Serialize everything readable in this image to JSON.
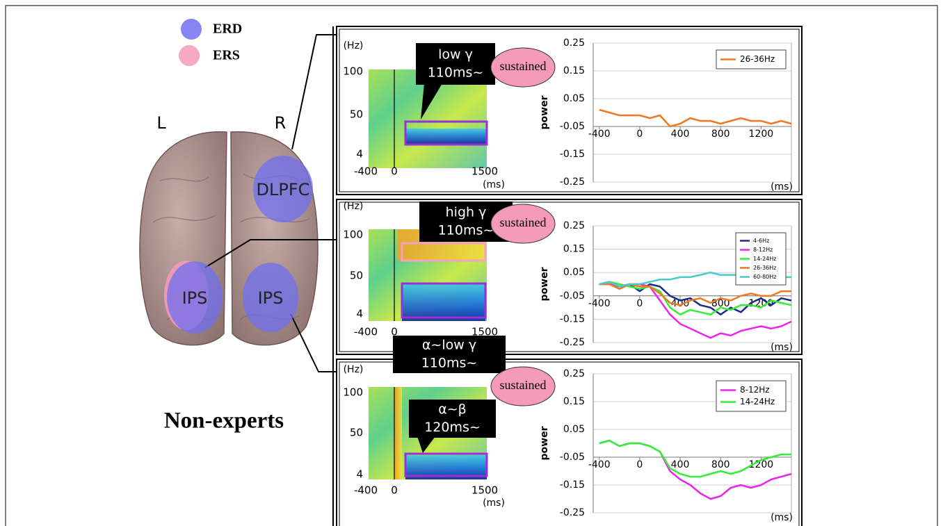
{
  "figure": {
    "legend": [
      {
        "label": "ERD",
        "color": "#6f6ff0"
      },
      {
        "label": "ERS",
        "color": "#f59ab8"
      }
    ],
    "hemispheres": [
      "L",
      "R"
    ],
    "regions": [
      "DLPFC",
      "IPS",
      "IPS"
    ],
    "group": "Non-experts",
    "panels": [
      {
        "spectrogram": {
          "unit_y": "(Hz)",
          "yticks": [
            "100",
            "50",
            "4"
          ],
          "xticks": [
            "-400",
            "0",
            "1500"
          ],
          "unit_x": "(ms)"
        },
        "callouts": [
          {
            "lines": [
              "low γ",
              "110ms~"
            ]
          }
        ],
        "badge": "sustained"
      },
      {
        "spectrogram": {
          "unit_y": "(Hz)",
          "yticks": [
            "100",
            "50",
            "4"
          ],
          "xticks": [
            "-400",
            "0",
            "1500"
          ]
        },
        "callouts": [
          {
            "lines": [
              "high γ",
              "110ms~"
            ]
          }
        ],
        "badge": "sustained"
      },
      {
        "spectrogram": {
          "unit_y": "(Hz)",
          "yticks": [
            "100",
            "50",
            "4"
          ],
          "xticks": [
            "-400",
            "0",
            "1500"
          ],
          "unit_x": "(ms)"
        },
        "callouts": [
          {
            "lines": [
              "α~low γ",
              "110ms~"
            ]
          },
          {
            "lines": [
              "α~β",
              "120ms~"
            ]
          }
        ],
        "badge": "sustained"
      }
    ]
  },
  "chart_data": [
    {
      "type": "line",
      "ylabel": "power",
      "xlabel": "(ms)",
      "legend": "upper right",
      "grid": true,
      "xaxis_crossing": -0.05,
      "xlim": [
        -460,
        1500
      ],
      "ylim": [
        -0.25,
        0.25
      ],
      "xticks": [
        -400,
        0,
        400,
        800,
        1200
      ],
      "yticks": [
        0.25,
        0.15,
        0.05,
        -0.05,
        -0.15,
        -0.25
      ],
      "x": [
        -400,
        -300,
        -200,
        -100,
        0,
        100,
        200,
        300,
        400,
        500,
        600,
        700,
        800,
        900,
        1000,
        1100,
        1200,
        1300,
        1400,
        1500
      ],
      "series": [
        {
          "name": "26-36Hz",
          "color": "#f07820",
          "values": [
            0.01,
            0.0,
            -0.01,
            -0.01,
            -0.01,
            -0.02,
            -0.01,
            -0.05,
            -0.04,
            -0.02,
            -0.03,
            -0.03,
            -0.04,
            -0.03,
            -0.02,
            -0.03,
            -0.03,
            -0.04,
            -0.03,
            -0.04
          ]
        }
      ]
    },
    {
      "type": "line",
      "ylabel": "power",
      "xlabel": "(ms)",
      "legend": "upper right",
      "grid": true,
      "xaxis_crossing": -0.05,
      "xlim": [
        -460,
        1500
      ],
      "ylim": [
        -0.25,
        0.25
      ],
      "xticks": [
        -400,
        0,
        400,
        800,
        1200
      ],
      "yticks": [
        0.25,
        0.15,
        0.05,
        -0.05,
        -0.15,
        -0.25
      ],
      "x": [
        -400,
        -300,
        -200,
        -100,
        0,
        100,
        200,
        300,
        400,
        500,
        600,
        700,
        800,
        900,
        1000,
        1100,
        1200,
        1300,
        1400,
        1500
      ],
      "series": [
        {
          "name": "4-6Hz",
          "color": "#1a2a8c",
          "values": [
            0.0,
            0.01,
            -0.01,
            0.0,
            -0.03,
            0.0,
            -0.01,
            -0.05,
            -0.07,
            -0.06,
            -0.09,
            -0.1,
            -0.13,
            -0.1,
            -0.12,
            -0.08,
            -0.06,
            -0.09,
            -0.06,
            -0.07
          ]
        },
        {
          "name": "8-12Hz",
          "color": "#ee22ee",
          "values": [
            0.0,
            0.0,
            -0.01,
            0.0,
            0.0,
            -0.01,
            -0.07,
            -0.13,
            -0.17,
            -0.19,
            -0.21,
            -0.23,
            -0.21,
            -0.22,
            -0.2,
            -0.19,
            -0.18,
            -0.19,
            -0.18,
            -0.16
          ]
        },
        {
          "name": "14-24Hz",
          "color": "#33ee33",
          "values": [
            0.0,
            0.01,
            0.0,
            -0.01,
            -0.02,
            -0.01,
            -0.03,
            -0.1,
            -0.13,
            -0.11,
            -0.12,
            -0.13,
            -0.1,
            -0.11,
            -0.09,
            -0.09,
            -0.1,
            -0.07,
            -0.08,
            -0.09
          ]
        },
        {
          "name": "26-36Hz",
          "color": "#f07820",
          "values": [
            0.0,
            0.0,
            -0.02,
            0.0,
            -0.01,
            -0.01,
            -0.04,
            -0.08,
            -0.09,
            -0.07,
            -0.06,
            -0.08,
            -0.06,
            -0.07,
            -0.05,
            -0.04,
            -0.05,
            -0.05,
            -0.03,
            -0.03
          ]
        },
        {
          "name": "60-80Hz",
          "color": "#44cccc",
          "values": [
            0.0,
            0.01,
            -0.01,
            0.0,
            0.0,
            0.01,
            0.02,
            0.02,
            0.03,
            0.03,
            0.04,
            0.05,
            0.04,
            0.04,
            0.04,
            0.03,
            0.03,
            0.03,
            0.03,
            0.03
          ]
        }
      ]
    },
    {
      "type": "line",
      "ylabel": "power",
      "xlabel": "(ms)",
      "legend": "upper right",
      "grid": true,
      "xaxis_crossing": -0.05,
      "xlim": [
        -460,
        1500
      ],
      "ylim": [
        -0.25,
        0.25
      ],
      "xticks": [
        -400,
        0,
        400,
        800,
        1200
      ],
      "yticks": [
        0.25,
        0.15,
        0.05,
        -0.05,
        -0.15,
        -0.25
      ],
      "x": [
        -400,
        -300,
        -200,
        -100,
        0,
        100,
        200,
        300,
        400,
        500,
        600,
        700,
        800,
        900,
        1000,
        1100,
        1200,
        1300,
        1400,
        1500
      ],
      "series": [
        {
          "name": "8-12Hz",
          "color": "#ee22ee",
          "values": [
            0.0,
            0.01,
            -0.01,
            0.0,
            0.0,
            -0.01,
            -0.03,
            -0.1,
            -0.13,
            -0.15,
            -0.18,
            -0.2,
            -0.19,
            -0.16,
            -0.15,
            -0.16,
            -0.15,
            -0.13,
            -0.12,
            -0.11
          ]
        },
        {
          "name": "14-24Hz",
          "color": "#33ee33",
          "values": [
            0.0,
            0.01,
            -0.01,
            0.0,
            0.0,
            -0.01,
            -0.03,
            -0.09,
            -0.11,
            -0.12,
            -0.12,
            -0.11,
            -0.1,
            -0.11,
            -0.1,
            -0.08,
            -0.06,
            -0.05,
            -0.04,
            -0.04
          ]
        }
      ]
    }
  ]
}
